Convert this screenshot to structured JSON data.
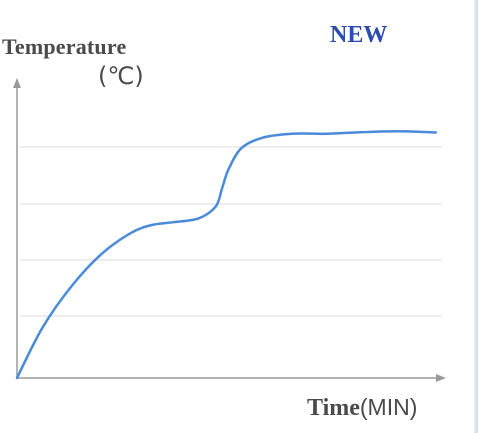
{
  "badge": "NEW",
  "chart_data": {
    "type": "line",
    "title": "",
    "ylabel": "Temperature",
    "yunit": "(℃)",
    "xlabel": "Time",
    "xunit": "(MIN)",
    "xlim": [
      0,
      10
    ],
    "ylim": [
      0,
      10
    ],
    "grid": "horizontal",
    "tick_labels_shown": false,
    "series": [
      {
        "color": "#4a8ad8",
        "x": [
          0,
          0.6,
          1.3,
          2.0,
          2.7,
          3.2,
          3.7,
          4.3,
          4.7,
          4.85,
          5.0,
          5.3,
          5.8,
          6.5,
          7.3,
          8.0,
          9.0,
          9.9
        ],
        "y": [
          0.0,
          1.9,
          3.5,
          4.7,
          5.5,
          5.8,
          5.9,
          6.05,
          6.5,
          7.2,
          7.9,
          8.7,
          9.1,
          9.25,
          9.25,
          9.3,
          9.35,
          9.3
        ]
      }
    ]
  }
}
